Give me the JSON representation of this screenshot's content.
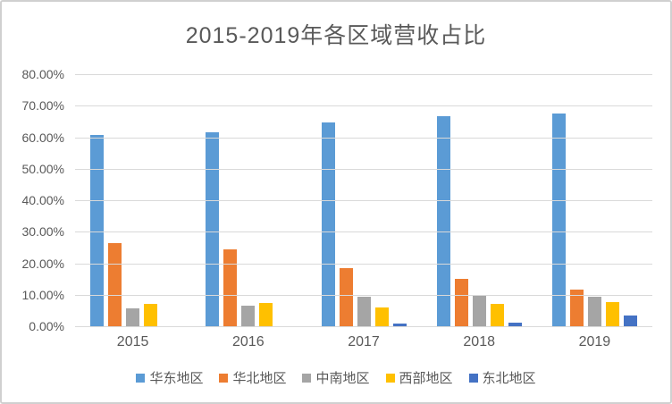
{
  "chart_data": {
    "type": "bar",
    "title": "2015-2019年各区域营收占比",
    "categories": [
      "2015",
      "2016",
      "2017",
      "2018",
      "2019"
    ],
    "series": [
      {
        "name": "华东地区",
        "color": "#5B9BD5",
        "values": [
          60.8,
          61.5,
          64.8,
          66.8,
          67.5
        ]
      },
      {
        "name": "华北地区",
        "color": "#ED7D31",
        "values": [
          26.3,
          24.5,
          18.4,
          14.9,
          11.5
        ]
      },
      {
        "name": "中南地区",
        "color": "#A5A5A5",
        "values": [
          5.8,
          6.4,
          9.4,
          9.7,
          9.4
        ]
      },
      {
        "name": "西部地区",
        "color": "#FFC000",
        "values": [
          7.1,
          7.3,
          6.0,
          7.2,
          7.7
        ]
      },
      {
        "name": "东北地区",
        "color": "#4472C4",
        "values": [
          0.0,
          0.0,
          0.8,
          1.0,
          3.4
        ]
      }
    ],
    "y_axis": {
      "min": 0,
      "max": 80,
      "step": 10,
      "tick_labels": [
        "80.00%",
        "70.00%",
        "60.00%",
        "50.00%",
        "40.00%",
        "30.00%",
        "20.00%",
        "10.00%",
        "0.00%"
      ],
      "format": "percent"
    },
    "grid": true,
    "legend_position": "bottom",
    "gridline_color": "#D9D9D9",
    "text_color": "#595959"
  }
}
